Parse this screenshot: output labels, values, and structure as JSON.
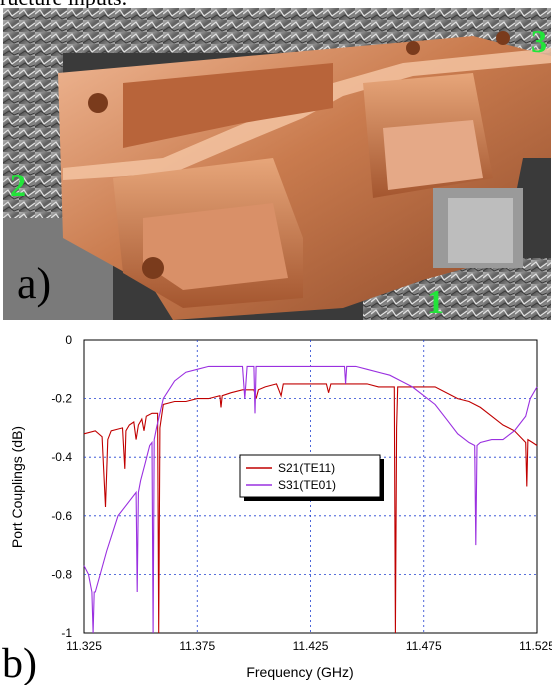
{
  "caption_top": "ructure inputs.",
  "photo": {
    "panel_label": "a)",
    "port_labels": [
      "1",
      "2",
      "3"
    ],
    "colors": {
      "copper": "#c57a4c",
      "copper_light": "#e9b08a",
      "port_label": "#22e43a",
      "foil": "#8a8a8a"
    }
  },
  "chart_panel_label": "b)",
  "chart_data": {
    "type": "line",
    "title": "",
    "xlabel": "Frequency (GHz)",
    "ylabel": "Port Couplings (dB)",
    "xlim": [
      11.325,
      11.525
    ],
    "ylim": [
      -1,
      0
    ],
    "xticks": [
      "11.325",
      "11.375",
      "11.425",
      "11.475",
      "11.525"
    ],
    "xtick_values": [
      11.325,
      11.375,
      11.425,
      11.475,
      11.525
    ],
    "yticks": [
      "0",
      "-0.2",
      "-0.4",
      "-0.6",
      "-0.8",
      "-1"
    ],
    "ytick_values": [
      0,
      -0.2,
      -0.4,
      -0.6,
      -0.8,
      -1
    ],
    "grid": true,
    "legend_position": "center-right",
    "series": [
      {
        "name": "S21(TE11)",
        "color": "#c00000",
        "x": [
          11.325,
          11.33,
          11.333,
          11.3345,
          11.3355,
          11.337,
          11.342,
          11.343,
          11.3435,
          11.345,
          11.347,
          11.348,
          11.349,
          11.3505,
          11.3515,
          11.3525,
          11.355,
          11.3575,
          11.358,
          11.3585,
          11.36,
          11.365,
          11.37,
          11.375,
          11.38,
          11.385,
          11.3855,
          11.386,
          11.39,
          11.395,
          11.4,
          11.401,
          11.402,
          11.405,
          11.41,
          11.412,
          11.413,
          11.414,
          11.42,
          11.425,
          11.43,
          11.432,
          11.433,
          11.434,
          11.44,
          11.445,
          11.45,
          11.455,
          11.46,
          11.462,
          11.4625,
          11.463,
          11.4635,
          11.465,
          11.47,
          11.475,
          11.48,
          11.485,
          11.49,
          11.495,
          11.5,
          11.505,
          11.51,
          11.515,
          11.52,
          11.5205,
          11.521,
          11.523,
          11.525
        ],
        "y": [
          -0.32,
          -0.31,
          -0.33,
          -0.57,
          -0.34,
          -0.31,
          -0.3,
          -0.44,
          -0.31,
          -0.29,
          -0.28,
          -0.34,
          -0.29,
          -0.27,
          -0.31,
          -0.26,
          -0.25,
          -0.25,
          -1.0,
          -0.3,
          -0.22,
          -0.21,
          -0.21,
          -0.2,
          -0.2,
          -0.19,
          -0.23,
          -0.19,
          -0.18,
          -0.17,
          -0.17,
          -0.2,
          -0.17,
          -0.16,
          -0.15,
          -0.19,
          -0.15,
          -0.15,
          -0.15,
          -0.15,
          -0.15,
          -0.15,
          -0.18,
          -0.15,
          -0.15,
          -0.15,
          -0.15,
          -0.16,
          -0.16,
          -0.16,
          -1.0,
          -0.3,
          -0.16,
          -0.16,
          -0.16,
          -0.16,
          -0.16,
          -0.18,
          -0.2,
          -0.21,
          -0.23,
          -0.26,
          -0.29,
          -0.31,
          -0.35,
          -0.5,
          -0.34,
          -0.35,
          -0.36
        ]
      },
      {
        "name": "S31(TE01)",
        "color": "#9a30e0",
        "x": [
          11.325,
          11.327,
          11.3285,
          11.329,
          11.3295,
          11.33,
          11.335,
          11.34,
          11.345,
          11.348,
          11.3485,
          11.349,
          11.3495,
          11.35,
          11.352,
          11.354,
          11.355,
          11.3555,
          11.356,
          11.357,
          11.36,
          11.365,
          11.37,
          11.375,
          11.38,
          11.39,
          11.395,
          11.396,
          11.397,
          11.399,
          11.4,
          11.4005,
          11.401,
          11.402,
          11.41,
          11.42,
          11.425,
          11.43,
          11.435,
          11.44,
          11.4405,
          11.441,
          11.445,
          11.45,
          11.46,
          11.47,
          11.48,
          11.485,
          11.49,
          11.495,
          11.4975,
          11.498,
          11.4985,
          11.5,
          11.505,
          11.51,
          11.515,
          11.52,
          11.522,
          11.525
        ],
        "y": [
          -0.77,
          -0.8,
          -0.86,
          -1.0,
          -0.86,
          -0.86,
          -0.72,
          -0.6,
          -0.55,
          -0.52,
          -0.86,
          -0.52,
          -0.5,
          -0.48,
          -0.42,
          -0.36,
          -0.35,
          -1.0,
          -0.34,
          -0.3,
          -0.2,
          -0.14,
          -0.11,
          -0.1,
          -0.09,
          -0.09,
          -0.09,
          -0.2,
          -0.09,
          -0.09,
          -0.09,
          -0.25,
          -0.09,
          -0.09,
          -0.09,
          -0.09,
          -0.09,
          -0.09,
          -0.09,
          -0.09,
          -0.15,
          -0.09,
          -0.09,
          -0.1,
          -0.12,
          -0.16,
          -0.22,
          -0.27,
          -0.32,
          -0.35,
          -0.36,
          -0.7,
          -0.36,
          -0.35,
          -0.34,
          -0.34,
          -0.31,
          -0.26,
          -0.2,
          -0.16
        ]
      }
    ]
  }
}
